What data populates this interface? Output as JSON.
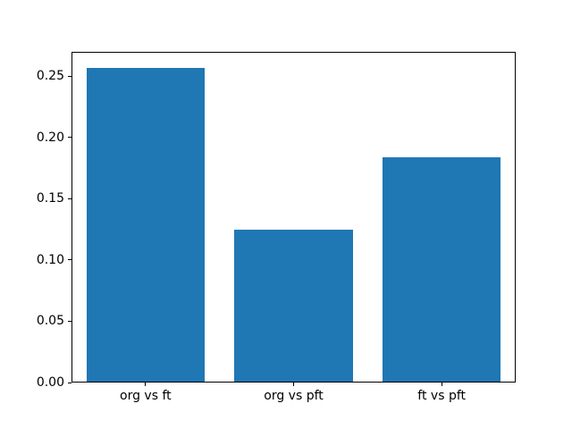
{
  "figure": {
    "background_color": "#ffffff",
    "bar_color": "#1f77b4",
    "axis_color": "#000000",
    "text_color": "#000000"
  },
  "chart_data": {
    "type": "bar",
    "categories": [
      "org vs ft",
      "org vs pft",
      "ft vs pft"
    ],
    "values": [
      0.257,
      0.125,
      0.184
    ],
    "title": "",
    "xlabel": "",
    "ylabel": "",
    "ylim": [
      0,
      0.26985
    ],
    "yticks": [
      0,
      0.05,
      0.1,
      0.15,
      0.2,
      0.25
    ],
    "ytick_labels": [
      "0.00",
      "0.05",
      "0.10",
      "0.15",
      "0.20",
      "0.25"
    ],
    "bar_width_fraction": 0.8,
    "grid": false,
    "legend_position": "none"
  }
}
